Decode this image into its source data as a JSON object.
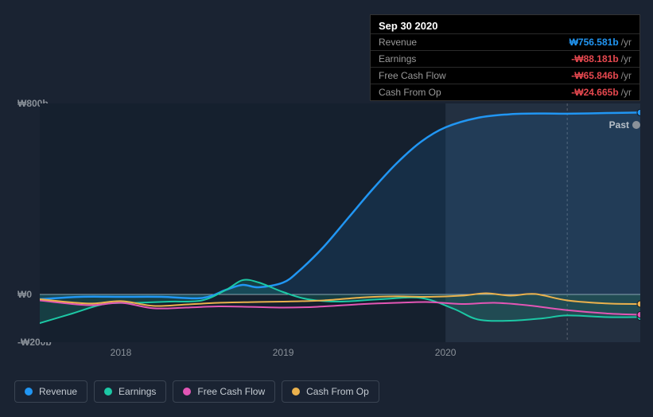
{
  "tooltip": {
    "date": "Sep 30 2020",
    "rows": [
      {
        "label": "Revenue",
        "value": "₩756.581b",
        "suffix": "/yr",
        "color": "#2196f3"
      },
      {
        "label": "Earnings",
        "value": "-₩88.181b",
        "suffix": "/yr",
        "color": "#e6484f"
      },
      {
        "label": "Free Cash Flow",
        "value": "-₩65.846b",
        "suffix": "/yr",
        "color": "#e6484f"
      },
      {
        "label": "Cash From Op",
        "value": "-₩24.665b",
        "suffix": "/yr",
        "color": "#e6484f"
      }
    ]
  },
  "chart": {
    "type": "line",
    "background_top": "#1a2332",
    "background_plot": "#15202e",
    "highlight_band_color": "#233041",
    "grid_color": "#2a3442",
    "zero_line_color": "#9aa3ad",
    "past_label": "Past",
    "y_axis": {
      "ticks": [
        {
          "v": 800,
          "label": "₩800b"
        },
        {
          "v": 0,
          "label": "₩0"
        },
        {
          "v": -200,
          "label": "-₩200b"
        }
      ],
      "min": -200,
      "max": 800
    },
    "x_axis": {
      "min": 2017.5,
      "max": 2021.2,
      "ticks": [
        {
          "v": 2018,
          "label": "2018"
        },
        {
          "v": 2019,
          "label": "2019"
        },
        {
          "v": 2020,
          "label": "2020"
        }
      ],
      "tooltip_x": 2020.75,
      "highlight_start": 2020.0
    },
    "series": [
      {
        "id": "revenue",
        "name": "Revenue",
        "color": "#2196f3",
        "fill_opacity": 0.12,
        "line_width": 2.5,
        "marker_at_end": true,
        "data": [
          [
            2017.5,
            -20
          ],
          [
            2017.75,
            -10
          ],
          [
            2018.0,
            -10
          ],
          [
            2018.25,
            -10
          ],
          [
            2018.5,
            -15
          ],
          [
            2018.65,
            20
          ],
          [
            2018.75,
            40
          ],
          [
            2018.85,
            30
          ],
          [
            2019.0,
            50
          ],
          [
            2019.1,
            100
          ],
          [
            2019.25,
            200
          ],
          [
            2019.4,
            320
          ],
          [
            2019.55,
            440
          ],
          [
            2019.7,
            550
          ],
          [
            2019.85,
            640
          ],
          [
            2020.0,
            700
          ],
          [
            2020.2,
            740
          ],
          [
            2020.4,
            755
          ],
          [
            2020.6,
            758
          ],
          [
            2020.75,
            757
          ],
          [
            2021.0,
            760
          ],
          [
            2021.2,
            762
          ]
        ]
      },
      {
        "id": "earnings",
        "name": "Earnings",
        "color": "#1cc8a5",
        "fill_opacity": 0.18,
        "line_width": 2,
        "marker_at_end": true,
        "data": [
          [
            2017.5,
            -120
          ],
          [
            2017.7,
            -80
          ],
          [
            2017.9,
            -40
          ],
          [
            2018.1,
            -35
          ],
          [
            2018.3,
            -30
          ],
          [
            2018.5,
            -25
          ],
          [
            2018.65,
            20
          ],
          [
            2018.75,
            60
          ],
          [
            2018.85,
            50
          ],
          [
            2019.0,
            10
          ],
          [
            2019.15,
            -20
          ],
          [
            2019.35,
            -30
          ],
          [
            2019.6,
            -20
          ],
          [
            2019.85,
            -15
          ],
          [
            2020.05,
            -60
          ],
          [
            2020.2,
            -105
          ],
          [
            2020.4,
            -110
          ],
          [
            2020.6,
            -100
          ],
          [
            2020.75,
            -88
          ],
          [
            2021.0,
            -95
          ],
          [
            2021.2,
            -95
          ]
        ]
      },
      {
        "id": "fcf",
        "name": "Free Cash Flow",
        "color": "#e256b5",
        "fill_opacity": 0,
        "line_width": 2,
        "marker_at_end": true,
        "data": [
          [
            2017.5,
            -25
          ],
          [
            2017.8,
            -45
          ],
          [
            2018.0,
            -35
          ],
          [
            2018.2,
            -58
          ],
          [
            2018.4,
            -55
          ],
          [
            2018.6,
            -50
          ],
          [
            2018.8,
            -52
          ],
          [
            2019.0,
            -55
          ],
          [
            2019.2,
            -52
          ],
          [
            2019.5,
            -40
          ],
          [
            2019.7,
            -35
          ],
          [
            2019.9,
            -32
          ],
          [
            2020.1,
            -40
          ],
          [
            2020.3,
            -35
          ],
          [
            2020.5,
            -45
          ],
          [
            2020.75,
            -66
          ],
          [
            2021.0,
            -80
          ],
          [
            2021.2,
            -85
          ]
        ]
      },
      {
        "id": "cfo",
        "name": "Cash From Op",
        "color": "#eab14d",
        "fill_opacity": 0,
        "line_width": 2,
        "marker_at_end": true,
        "data": [
          [
            2017.5,
            -20
          ],
          [
            2017.8,
            -38
          ],
          [
            2018.0,
            -28
          ],
          [
            2018.2,
            -48
          ],
          [
            2018.4,
            -42
          ],
          [
            2018.6,
            -35
          ],
          [
            2018.8,
            -32
          ],
          [
            2019.0,
            -30
          ],
          [
            2019.25,
            -25
          ],
          [
            2019.5,
            -12
          ],
          [
            2019.7,
            -8
          ],
          [
            2019.9,
            -10
          ],
          [
            2020.1,
            -5
          ],
          [
            2020.25,
            5
          ],
          [
            2020.4,
            -5
          ],
          [
            2020.55,
            2
          ],
          [
            2020.75,
            -25
          ],
          [
            2021.0,
            -38
          ],
          [
            2021.2,
            -40
          ]
        ]
      }
    ],
    "legend": [
      {
        "id": "revenue",
        "label": "Revenue",
        "color": "#2196f3"
      },
      {
        "id": "earnings",
        "label": "Earnings",
        "color": "#1cc8a5"
      },
      {
        "id": "fcf",
        "label": "Free Cash Flow",
        "color": "#e256b5"
      },
      {
        "id": "cfo",
        "label": "Cash From Op",
        "color": "#eab14d"
      }
    ]
  }
}
